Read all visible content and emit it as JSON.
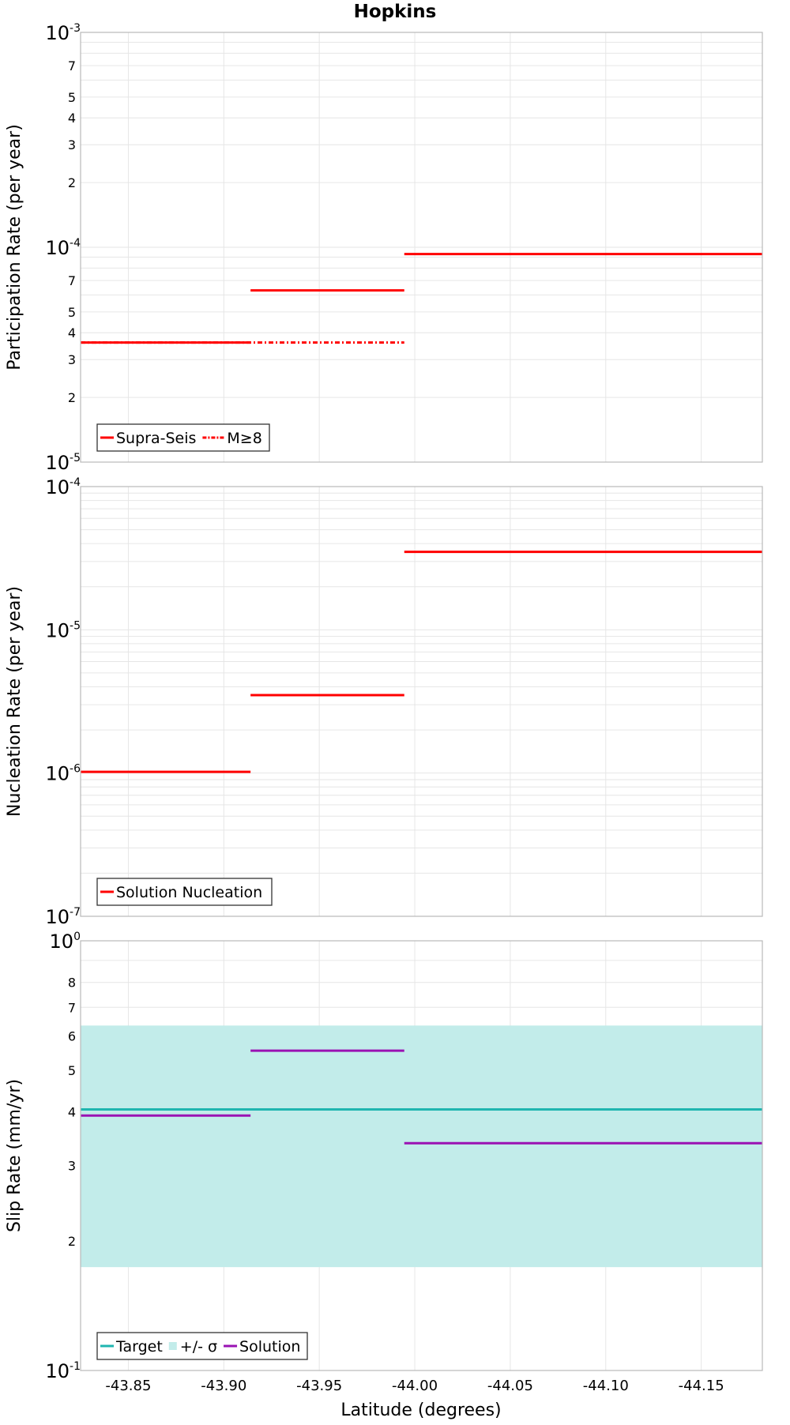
{
  "chart_data": {
    "type": "line",
    "title": "Hopkins",
    "xlabel": "Latitude (degrees)",
    "xlim": [
      -43.825,
      -44.182
    ],
    "x_ticks": [
      "-43.85",
      "-43.90",
      "-43.95",
      "-44.00",
      "-44.05",
      "-44.10",
      "-44.15"
    ],
    "x_tick_values": [
      -43.85,
      -43.9,
      -43.95,
      -44.0,
      -44.05,
      -44.1,
      -44.15
    ],
    "panels": [
      {
        "id": "participation",
        "ylabel": "Participation Rate (per year)",
        "yscale": "log",
        "ylim": [
          1e-05,
          0.001
        ],
        "major_ticks": [
          {
            "value": 1e-05,
            "base": "10",
            "exp": "-5"
          },
          {
            "value": 0.0001,
            "base": "10",
            "exp": "-4"
          },
          {
            "value": 0.001,
            "base": "10",
            "exp": "-3"
          }
        ],
        "minor_ticks": [
          {
            "value": 2e-05,
            "label": "2"
          },
          {
            "value": 3e-05,
            "label": "3"
          },
          {
            "value": 4e-05,
            "label": "4"
          },
          {
            "value": 5e-05,
            "label": "5"
          },
          {
            "value": 7e-05,
            "label": "7"
          },
          {
            "value": 0.0002,
            "label": "2"
          },
          {
            "value": 0.0003,
            "label": "3"
          },
          {
            "value": 0.0004,
            "label": "4"
          },
          {
            "value": 0.0005,
            "label": "5"
          },
          {
            "value": 0.0007,
            "label": "7"
          }
        ],
        "series": [
          {
            "name": "Supra-Seis",
            "color": "#ff0000",
            "style": "solid",
            "segments": [
              {
                "x": [
                  -43.825,
                  -43.914
                ],
                "y": 3.6e-05
              },
              {
                "x": [
                  -43.914,
                  -43.9945
                ],
                "y": 6.3e-05
              },
              {
                "x": [
                  -43.9945,
                  -44.182
                ],
                "y": 9.3e-05
              }
            ]
          },
          {
            "name": "M≥8",
            "color": "#ff0000",
            "style": "dashdot",
            "segments": [
              {
                "x": [
                  -43.825,
                  -43.9945
                ],
                "y": 3.6e-05
              }
            ]
          }
        ]
      },
      {
        "id": "nucleation",
        "ylabel": "Nucleation Rate (per year)",
        "yscale": "log",
        "ylim": [
          1e-07,
          0.0001
        ],
        "major_ticks": [
          {
            "value": 1e-07,
            "base": "10",
            "exp": "-7"
          },
          {
            "value": 1e-06,
            "base": "10",
            "exp": "-6"
          },
          {
            "value": 1e-05,
            "base": "10",
            "exp": "-5"
          },
          {
            "value": 0.0001,
            "base": "10",
            "exp": "-4"
          }
        ],
        "minor_ticks": [],
        "series": [
          {
            "name": "Solution Nucleation",
            "color": "#ff0000",
            "style": "solid",
            "segments": [
              {
                "x": [
                  -43.825,
                  -43.914
                ],
                "y": 1.02e-06
              },
              {
                "x": [
                  -43.914,
                  -43.9945
                ],
                "y": 3.5e-06
              },
              {
                "x": [
                  -43.9945,
                  -44.182
                ],
                "y": 3.5e-05
              }
            ]
          }
        ]
      },
      {
        "id": "slip",
        "ylabel": "Slip Rate (mm/yr)",
        "yscale": "log",
        "ylim": [
          0.1,
          1.0
        ],
        "major_ticks": [
          {
            "value": 0.1,
            "base": "10",
            "exp": "-1"
          },
          {
            "value": 1.0,
            "base": "10",
            "exp": "0"
          }
        ],
        "minor_ticks": [
          {
            "value": 0.2,
            "label": "2"
          },
          {
            "value": 0.3,
            "label": "3"
          },
          {
            "value": 0.4,
            "label": "4"
          },
          {
            "value": 0.5,
            "label": "5"
          },
          {
            "value": 0.6,
            "label": "6"
          },
          {
            "value": 0.7,
            "label": "7"
          },
          {
            "value": 0.8,
            "label": "8"
          }
        ],
        "band": {
          "name": "+/- σ",
          "color": "#c2ecea",
          "y": [
            0.174,
            0.635
          ],
          "x": [
            -43.825,
            -44.182
          ]
        },
        "series": [
          {
            "name": "Target",
            "color": "#1fb5b0",
            "style": "solid",
            "segments": [
              {
                "x": [
                  -43.825,
                  -44.182
                ],
                "y": 0.405
              }
            ]
          },
          {
            "name": "Solution",
            "color": "#9a12b3",
            "style": "solid",
            "segments": [
              {
                "x": [
                  -43.825,
                  -43.914
                ],
                "y": 0.392
              },
              {
                "x": [
                  -43.914,
                  -43.9945
                ],
                "y": 0.555
              },
              {
                "x": [
                  -43.9945,
                  -44.182
                ],
                "y": 0.338
              }
            ]
          }
        ]
      }
    ],
    "legends": [
      {
        "panel": "participation",
        "entries": [
          {
            "label": "Supra-Seis",
            "color": "#ff0000",
            "style": "solid"
          },
          {
            "label": "M≥8",
            "color": "#ff0000",
            "style": "dashdot"
          }
        ]
      },
      {
        "panel": "nucleation",
        "entries": [
          {
            "label": "Solution Nucleation",
            "color": "#ff0000",
            "style": "solid"
          }
        ]
      },
      {
        "panel": "slip",
        "entries": [
          {
            "label": "Target",
            "color": "#1fb5b0",
            "style": "solid"
          },
          {
            "label": "+/- σ",
            "color": "#c2ecea",
            "style": "band"
          },
          {
            "label": "Solution",
            "color": "#9a12b3",
            "style": "solid"
          }
        ]
      }
    ]
  }
}
